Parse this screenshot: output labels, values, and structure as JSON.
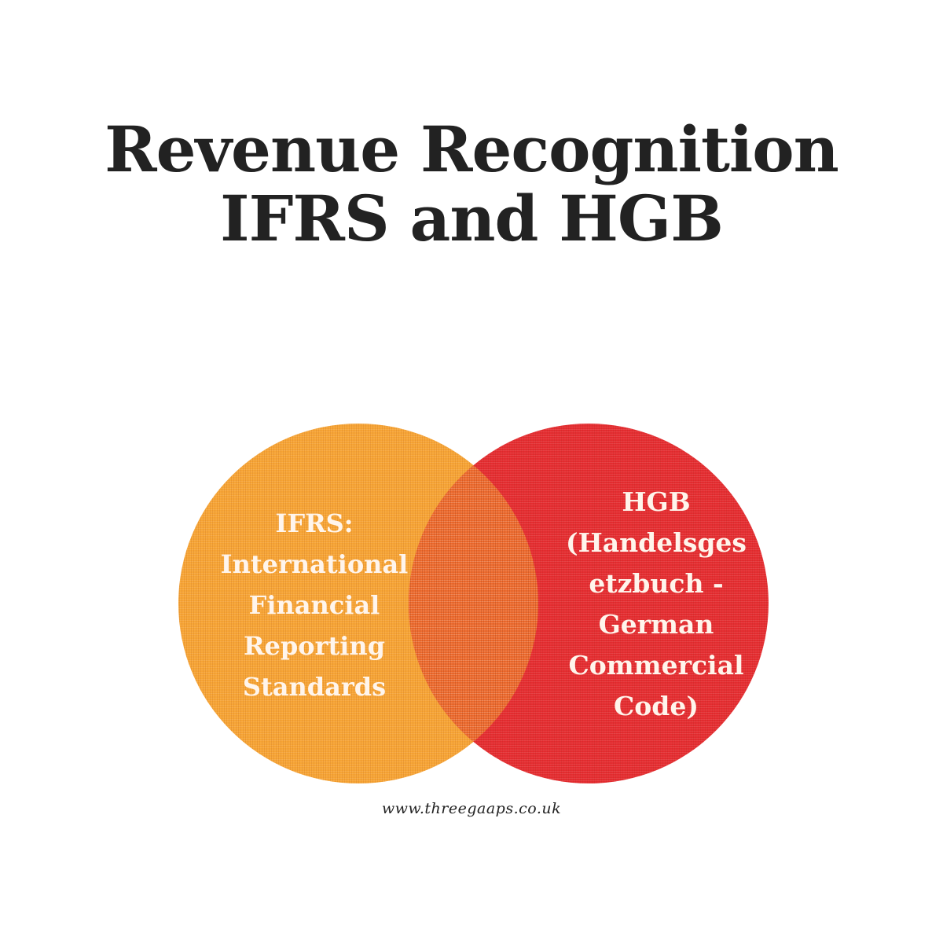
{
  "title": {
    "line1": "Revenue Recognition",
    "line2": "IFRS and HGB"
  },
  "venn": {
    "left": {
      "color": "#f7a535",
      "lines": [
        "IFRS:",
        "International",
        "Financial",
        "Reporting",
        "Standards"
      ]
    },
    "right": {
      "color": "#e4262a",
      "lines": [
        "HGB",
        "(Handelsges",
        "etzbuch -",
        "German",
        "Commercial",
        "Code)"
      ]
    },
    "overlap_color": "#ee6b2e"
  },
  "footer": {
    "url": "www.threegaaps.co.uk"
  }
}
